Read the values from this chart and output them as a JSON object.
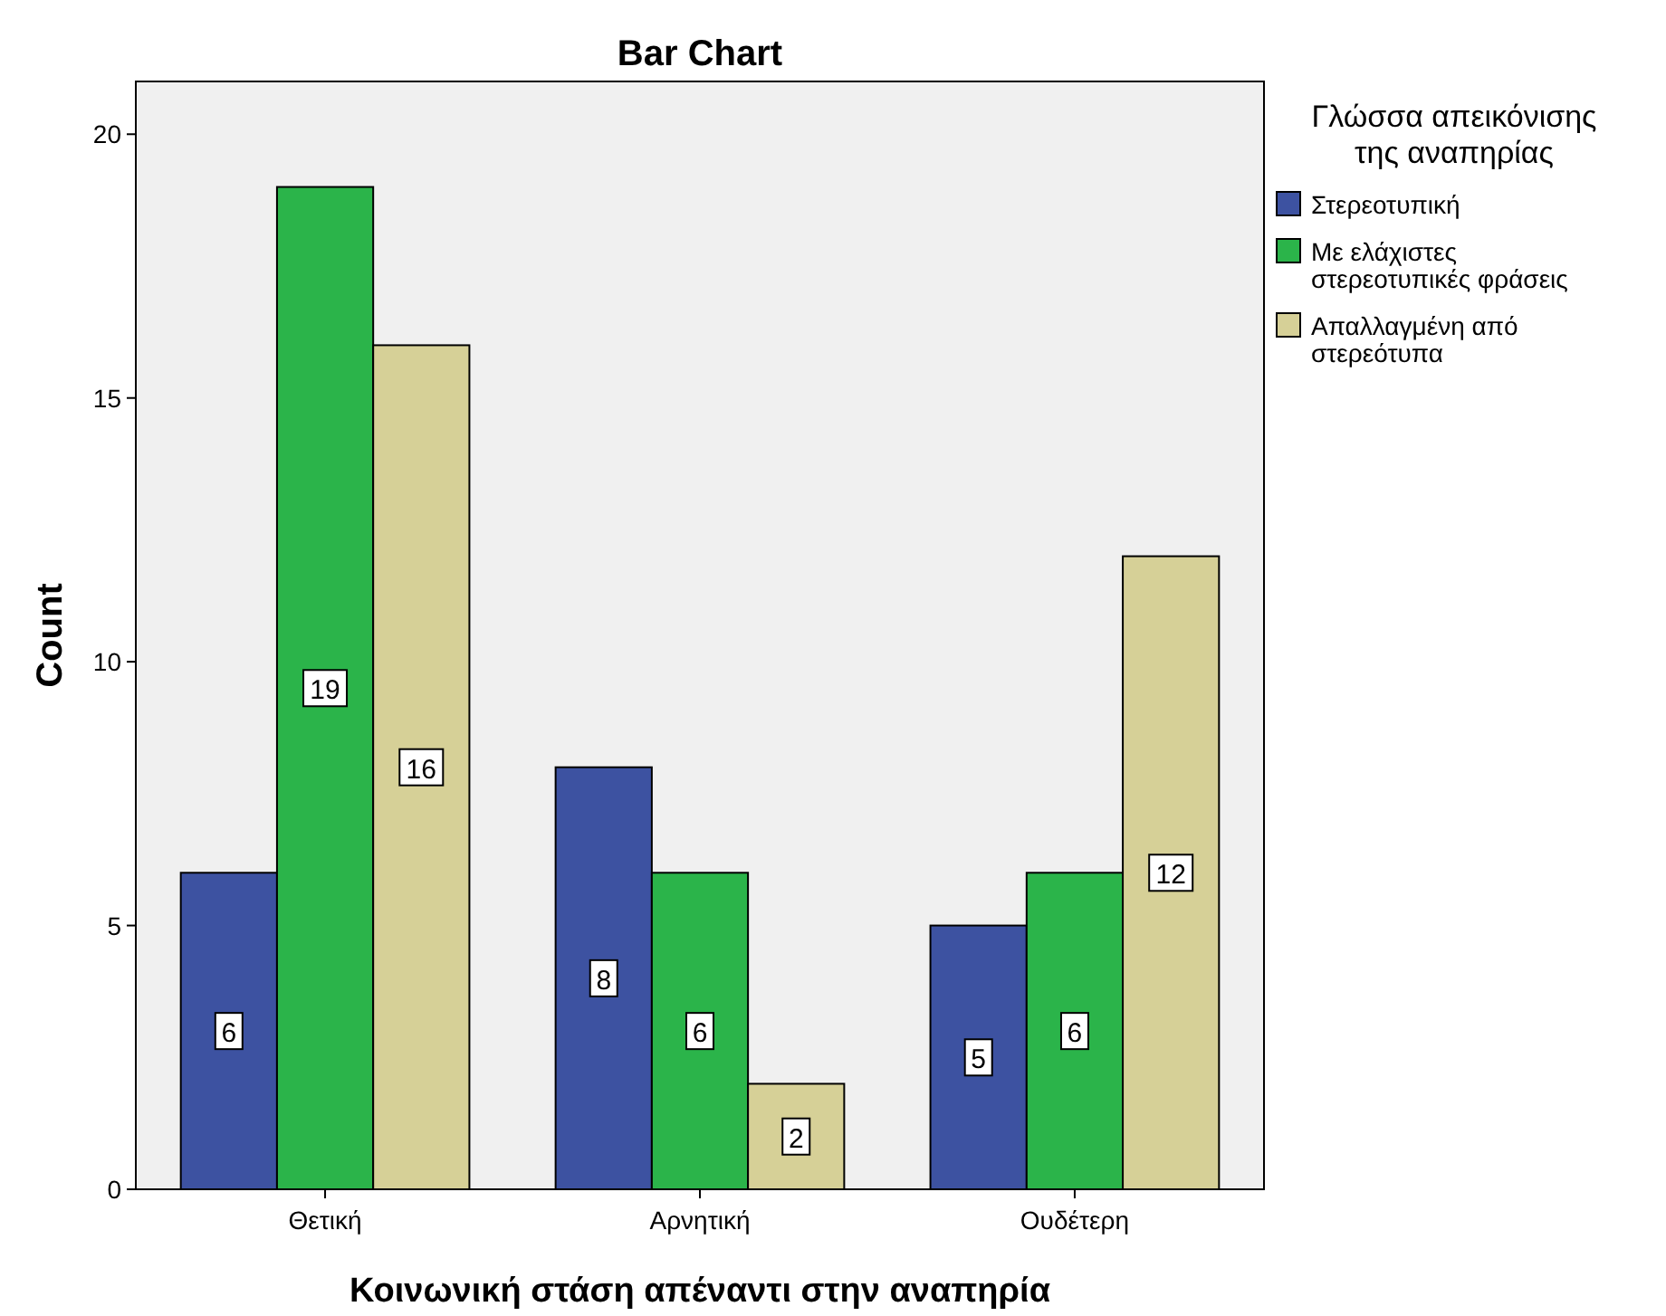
{
  "chart_data": {
    "type": "bar",
    "title": "Bar Chart",
    "xlabel": "Κοινωνική στάση απέναντι στην αναπηρία",
    "ylabel": "Count",
    "legend_title": "Γλώσσα απεικόνισης της αναπηρίας",
    "categories": [
      "Θετική",
      "Αρνητική",
      "Ουδέτερη"
    ],
    "series": [
      {
        "name": "Στερεοτυπική",
        "color": "#3d52a1",
        "values": [
          6,
          8,
          5
        ]
      },
      {
        "name": "Με ελάχιστες στερεοτυπικές φράσεις",
        "color": "#2bb44a",
        "values": [
          19,
          6,
          6
        ]
      },
      {
        "name": "Απαλλαγμένη από στερεότυπα",
        "color": "#d6d097",
        "values": [
          16,
          2,
          12
        ]
      }
    ],
    "ylim": [
      0,
      21
    ],
    "yticks": [
      0,
      5,
      10,
      15,
      20
    ],
    "grid": false,
    "legend": "right",
    "data_labels": true
  }
}
